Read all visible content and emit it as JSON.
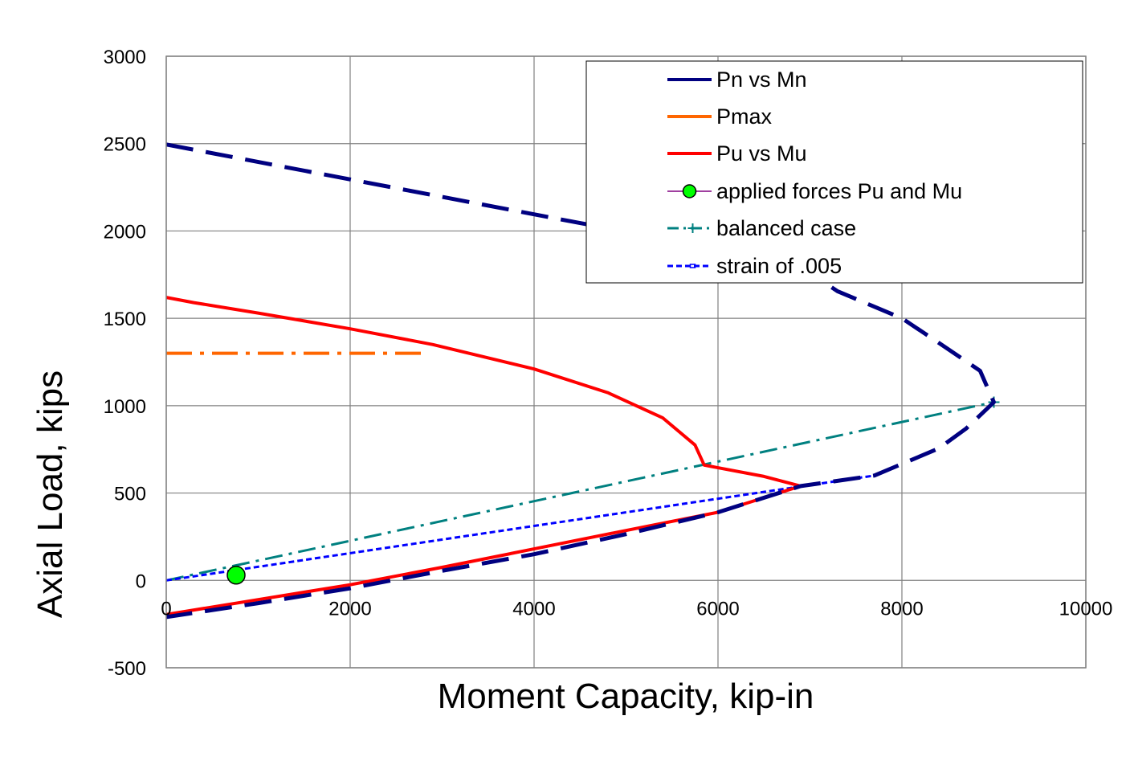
{
  "chart_data": {
    "type": "line",
    "xlabel": "Moment Capacity, kip-in",
    "ylabel": "Axial Load, kips",
    "xlim": [
      0,
      10000
    ],
    "ylim": [
      -500,
      3000
    ],
    "xticks": [
      0,
      2000,
      4000,
      6000,
      8000,
      10000
    ],
    "yticks": [
      -500,
      0,
      500,
      1000,
      1500,
      2000,
      2500,
      3000
    ],
    "grid": true,
    "legend": "top-right",
    "series": [
      {
        "name": "Pn vs Mn",
        "color": "#000080",
        "style": "long-dash",
        "points": [
          [
            0,
            2495
          ],
          [
            4500,
            2045
          ],
          [
            6000,
            1900
          ],
          [
            7000,
            1760
          ],
          [
            7300,
            1655
          ],
          [
            8000,
            1500
          ],
          [
            8400,
            1360
          ],
          [
            8850,
            1200
          ],
          [
            9000,
            1020
          ],
          [
            8700,
            870
          ],
          [
            8400,
            755
          ],
          [
            7700,
            600
          ],
          [
            6900,
            540
          ],
          [
            6000,
            390
          ],
          [
            5000,
            265
          ],
          [
            4000,
            150
          ],
          [
            3000,
            55
          ],
          [
            2000,
            -45
          ],
          [
            1000,
            -130
          ],
          [
            0,
            -210
          ]
        ]
      },
      {
        "name": "Pmax",
        "color": "#ff6600",
        "style": "dash-dot",
        "points": [
          [
            0,
            1300
          ],
          [
            2800,
            1300
          ]
        ]
      },
      {
        "name": "Pu vs Mu",
        "color": "#ff0000",
        "style": "solid",
        "points": [
          [
            0,
            1620
          ],
          [
            300,
            1590
          ],
          [
            1000,
            1530
          ],
          [
            2000,
            1440
          ],
          [
            2900,
            1350
          ],
          [
            4000,
            1210
          ],
          [
            4800,
            1075
          ],
          [
            5400,
            930
          ],
          [
            5750,
            775
          ],
          [
            5850,
            660
          ],
          [
            6500,
            595
          ],
          [
            6900,
            540
          ],
          [
            6000,
            390
          ],
          [
            4800,
            265
          ],
          [
            4000,
            180
          ],
          [
            3000,
            75
          ],
          [
            2000,
            -25
          ],
          [
            1000,
            -110
          ],
          [
            0,
            -195
          ]
        ]
      },
      {
        "name": "applied forces  Pu and Mu",
        "color": "#00ff00",
        "style": "marker",
        "points": [
          [
            760,
            30
          ]
        ]
      },
      {
        "name": "balanced case",
        "color": "#008080",
        "style": "dash-dot",
        "points": [
          [
            0,
            0
          ],
          [
            9000,
            1020
          ]
        ]
      },
      {
        "name": "strain of .005",
        "color": "#0000ff",
        "style": "short-dash",
        "points": [
          [
            0,
            0
          ],
          [
            7700,
            600
          ]
        ]
      }
    ]
  }
}
